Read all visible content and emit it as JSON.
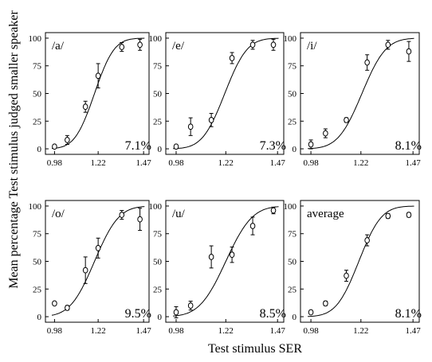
{
  "xlabel": "Test stimulus SER",
  "ylabel": "Mean percentage Test stimulus judged smaller speaker",
  "chart_data": [
    {
      "type": "scatter",
      "title": "/a/",
      "corner_value": "7.1%",
      "x": [
        0.98,
        1.05,
        1.15,
        1.22,
        1.35,
        1.45
      ],
      "y": [
        2,
        8,
        38,
        66,
        92,
        94
      ],
      "err": [
        0,
        4,
        5,
        11,
        4,
        5
      ],
      "fit": {
        "mu": 1.2,
        "sigma": 0.085
      },
      "xticks": [
        "0.98",
        "1.22",
        "1.47"
      ],
      "yticks": [
        0,
        25,
        50,
        75,
        100
      ],
      "xlim": [
        0.93,
        1.5
      ],
      "ylim": [
        -5,
        105
      ]
    },
    {
      "type": "scatter",
      "title": "/e/",
      "corner_value": "7.3%",
      "x": [
        0.98,
        1.05,
        1.15,
        1.25,
        1.35,
        1.45
      ],
      "y": [
        2,
        20,
        26,
        82,
        94,
        94
      ],
      "err": [
        0,
        8,
        6,
        5,
        4,
        5
      ],
      "fit": {
        "mu": 1.215,
        "sigma": 0.085
      },
      "xticks": [
        "0.98",
        "1.22",
        "1.47"
      ],
      "yticks": [
        0,
        25,
        50,
        75,
        100
      ],
      "xlim": [
        0.93,
        1.5
      ],
      "ylim": [
        -5,
        105
      ]
    },
    {
      "type": "scatter",
      "title": "/i/",
      "corner_value": "8.1%",
      "x": [
        0.98,
        1.05,
        1.15,
        1.25,
        1.35,
        1.45
      ],
      "y": [
        4,
        14,
        26,
        78,
        94,
        88
      ],
      "err": [
        4,
        4,
        2,
        7,
        4,
        9
      ],
      "fit": {
        "mu": 1.225,
        "sigma": 0.09
      },
      "xticks": [
        "0.98",
        "1.22",
        "1.47"
      ],
      "yticks": [
        0,
        25,
        50,
        75,
        100
      ],
      "xlim": [
        0.93,
        1.5
      ],
      "ylim": [
        -5,
        105
      ]
    },
    {
      "type": "scatter",
      "title": "/o/",
      "corner_value": "9.5%",
      "x": [
        0.98,
        1.05,
        1.15,
        1.22,
        1.35,
        1.45
      ],
      "y": [
        12,
        8,
        42,
        62,
        92,
        88
      ],
      "err": [
        0,
        2,
        12,
        9,
        4,
        10
      ],
      "fit": {
        "mu": 1.2,
        "sigma": 0.105
      },
      "xticks": [
        "0.98",
        "1.22",
        "1.47"
      ],
      "yticks": [
        0,
        25,
        50,
        75,
        100
      ],
      "xlim": [
        0.93,
        1.5
      ],
      "ylim": [
        -5,
        105
      ]
    },
    {
      "type": "scatter",
      "title": "/u/",
      "corner_value": "8.5%",
      "x": [
        0.98,
        1.05,
        1.15,
        1.25,
        1.35,
        1.45
      ],
      "y": [
        4,
        10,
        54,
        56,
        82,
        96
      ],
      "err": [
        5,
        4,
        10,
        7,
        8,
        3
      ],
      "fit": {
        "mu": 1.22,
        "sigma": 0.1
      },
      "xticks": [
        "0.98",
        "1.22",
        "1.47"
      ],
      "yticks": [
        0,
        25,
        50,
        75,
        100
      ],
      "xlim": [
        0.93,
        1.5
      ],
      "ylim": [
        -5,
        105
      ]
    },
    {
      "type": "scatter",
      "title": "average",
      "corner_value": "8.1%",
      "x": [
        0.98,
        1.05,
        1.15,
        1.25,
        1.35,
        1.45
      ],
      "y": [
        4,
        12,
        37,
        69,
        91,
        92
      ],
      "err": [
        0,
        2,
        5,
        5,
        2,
        2
      ],
      "fit": {
        "mu": 1.21,
        "sigma": 0.085
      },
      "xticks": [
        "0.98",
        "1.22",
        "1.47"
      ],
      "yticks": [
        0,
        25,
        50,
        75,
        100
      ],
      "xlim": [
        0.93,
        1.5
      ],
      "ylim": [
        -5,
        105
      ]
    }
  ]
}
